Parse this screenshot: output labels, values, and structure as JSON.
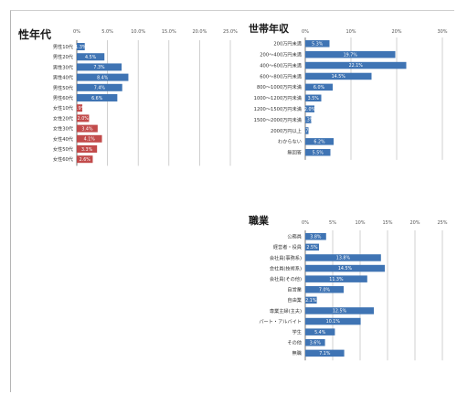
{
  "chart_data": [
    {
      "type": "bar",
      "title": "性年代",
      "xlim": [
        0,
        25
      ],
      "ticks": [
        "0%",
        "5.0%",
        "10.0%",
        "15.0%",
        "20.0%",
        "25.0%"
      ],
      "categories": [
        "男性10代",
        "男性20代",
        "男性30代",
        "男性40代",
        "男性50代",
        "男性60代",
        "女性10代",
        "女性20代",
        "女性30代",
        "女性40代",
        "女性50代",
        "女性60代"
      ],
      "values": [
        1.3,
        4.5,
        7.3,
        8.4,
        7.4,
        6.6,
        0.9,
        2.0,
        3.4,
        4.1,
        3.3,
        2.6
      ],
      "labels": [
        "1.3%",
        "4.5%",
        "7.3%",
        "8.4%",
        "7.4%",
        "6.6%",
        "0.9%",
        "2.0%",
        "3.4%",
        "4.1%",
        "3.3%",
        "2.6%"
      ],
      "colors": [
        "#3f74b4",
        "#3f74b4",
        "#3f74b4",
        "#3f74b4",
        "#3f74b4",
        "#3f74b4",
        "#c24b4b",
        "#c24b4b",
        "#c24b4b",
        "#c24b4b",
        "#c24b4b",
        "#c24b4b"
      ]
    },
    {
      "type": "bar",
      "title": "世帯年収",
      "xlim": [
        0,
        30
      ],
      "ticks": [
        "0%",
        "10%",
        "20%",
        "30%"
      ],
      "categories": [
        "200万円未満",
        "200～400万円未満",
        "400～600万円未満",
        "600～800万円未満",
        "800～1000万円未満",
        "1000～1200万円未満",
        "1200～1500万円未満",
        "1500～2000万円未満",
        "2000万円以上",
        "わからない",
        "無回答"
      ],
      "values": [
        5.3,
        19.7,
        22.1,
        14.5,
        6.0,
        3.5,
        2.0,
        1.3,
        0.7,
        6.2,
        5.5
      ],
      "labels": [
        "5.3%",
        "19.7%",
        "22.1%",
        "14.5%",
        "6.0%",
        "3.5%",
        "2.0%",
        "1.3%",
        "0.7%",
        "6.2%",
        "5.5%"
      ],
      "colors": [
        "#3f74b4"
      ]
    },
    {
      "type": "bar",
      "title": "職業",
      "xlim": [
        0,
        25
      ],
      "ticks": [
        "0%",
        "5%",
        "10%",
        "15%",
        "20%",
        "25%"
      ],
      "categories": [
        "公務員",
        "経営者・役員",
        "会社員(事務系)",
        "会社員(技術系)",
        "会社員(その他)",
        "自営業",
        "自由業",
        "専業主婦(主夫)",
        "パート・アルバイト",
        "学生",
        "その他",
        "無職"
      ],
      "values": [
        3.8,
        2.5,
        13.8,
        14.5,
        11.3,
        7.0,
        2.1,
        12.5,
        10.1,
        5.4,
        3.6,
        7.1
      ],
      "labels": [
        "3.8%",
        "2.5%",
        "13.8%",
        "14.5%",
        "11.3%",
        "7.0%",
        "2.1%",
        "12.5%",
        "10.1%",
        "5.4%",
        "3.6%",
        "7.1%"
      ],
      "colors": [
        "#3f74b4"
      ]
    }
  ]
}
